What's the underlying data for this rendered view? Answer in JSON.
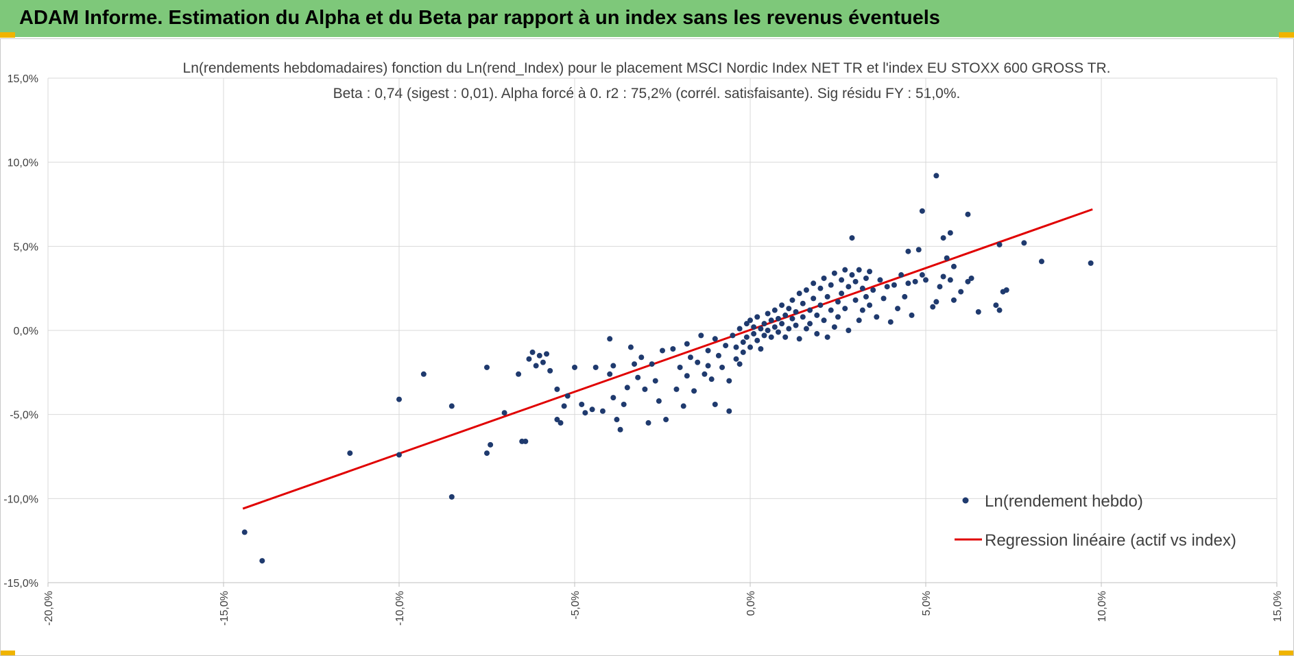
{
  "header": {
    "title": "ADAM Informe. Estimation du Alpha et du Beta par rapport à un index sans les revenus éventuels",
    "bar_color": "#7ec87a",
    "corner_color": "#f0b400"
  },
  "chart_data": {
    "type": "scatter",
    "title": "Ln(rendements hebdomadaires) fonction du Ln(rend_Index) pour le placement MSCI  Nordic Index NET TR et l'index EU STOXX 600 GROSS TR.",
    "subtitle": "Beta : 0,74 (sigest : 0,01).  Alpha forcé à 0. r2 : 75,2% (corrél. satisfaisante). Sig résidu FY : 51,0%.",
    "xlabel": "",
    "ylabel": "",
    "xlim": [
      -0.2,
      0.15
    ],
    "ylim": [
      -0.15,
      0.15
    ],
    "x_ticks": [
      -0.2,
      -0.15,
      -0.1,
      -0.05,
      0.0,
      0.05,
      0.1,
      0.15
    ],
    "x_tick_labels": [
      "-20,0%",
      "-15,0%",
      "-10,0%",
      "-5,0%",
      "0,0%",
      "5,0%",
      "10,0%",
      "15,0%"
    ],
    "y_ticks": [
      -0.15,
      -0.1,
      -0.05,
      0.0,
      0.05,
      0.1,
      0.15
    ],
    "y_tick_labels": [
      "-15,0%",
      "-10,0%",
      "-5,0%",
      "0,0%",
      "5,0%",
      "10,0%",
      "15,0%"
    ],
    "grid": true,
    "legend_position": "bottom-right",
    "series": [
      {
        "name": "Ln(rendement hebdo)",
        "type": "scatter",
        "color": "#1f3a6e",
        "points": [
          [
            -0.144,
            -0.12
          ],
          [
            -0.139,
            -0.137
          ],
          [
            -0.114,
            -0.073
          ],
          [
            -0.1,
            -0.041
          ],
          [
            -0.1,
            -0.074
          ],
          [
            -0.093,
            -0.026
          ],
          [
            -0.085,
            -0.045
          ],
          [
            -0.085,
            -0.099
          ],
          [
            -0.075,
            -0.022
          ],
          [
            -0.074,
            -0.068
          ],
          [
            -0.075,
            -0.073
          ],
          [
            -0.07,
            -0.049
          ],
          [
            -0.066,
            -0.026
          ],
          [
            -0.065,
            -0.066
          ],
          [
            -0.064,
            -0.066
          ],
          [
            -0.063,
            -0.017
          ],
          [
            -0.062,
            -0.013
          ],
          [
            -0.061,
            -0.021
          ],
          [
            -0.06,
            -0.015
          ],
          [
            -0.059,
            -0.019
          ],
          [
            -0.058,
            -0.014
          ],
          [
            -0.057,
            -0.024
          ],
          [
            -0.055,
            -0.035
          ],
          [
            -0.055,
            -0.053
          ],
          [
            -0.054,
            -0.055
          ],
          [
            -0.053,
            -0.045
          ],
          [
            -0.052,
            -0.039
          ],
          [
            -0.05,
            -0.022
          ],
          [
            -0.048,
            -0.044
          ],
          [
            -0.047,
            -0.049
          ],
          [
            -0.045,
            -0.047
          ],
          [
            -0.044,
            -0.022
          ],
          [
            -0.042,
            -0.048
          ],
          [
            -0.04,
            -0.026
          ],
          [
            -0.039,
            -0.021
          ],
          [
            -0.039,
            -0.04
          ],
          [
            -0.038,
            -0.053
          ],
          [
            -0.04,
            -0.005
          ],
          [
            -0.037,
            -0.059
          ],
          [
            -0.036,
            -0.044
          ],
          [
            -0.035,
            -0.034
          ],
          [
            -0.034,
            -0.01
          ],
          [
            -0.033,
            -0.02
          ],
          [
            -0.032,
            -0.028
          ],
          [
            -0.031,
            -0.016
          ],
          [
            -0.03,
            -0.035
          ],
          [
            -0.029,
            -0.055
          ],
          [
            -0.028,
            -0.02
          ],
          [
            -0.027,
            -0.03
          ],
          [
            -0.026,
            -0.042
          ],
          [
            -0.025,
            -0.012
          ],
          [
            -0.024,
            -0.053
          ],
          [
            -0.022,
            -0.011
          ],
          [
            -0.021,
            -0.035
          ],
          [
            -0.02,
            -0.022
          ],
          [
            -0.019,
            -0.045
          ],
          [
            -0.018,
            -0.008
          ],
          [
            -0.018,
            -0.027
          ],
          [
            -0.017,
            -0.016
          ],
          [
            -0.016,
            -0.036
          ],
          [
            -0.015,
            -0.019
          ],
          [
            -0.014,
            -0.003
          ],
          [
            -0.013,
            -0.026
          ],
          [
            -0.012,
            -0.012
          ],
          [
            -0.012,
            -0.021
          ],
          [
            -0.011,
            -0.029
          ],
          [
            -0.01,
            -0.044
          ],
          [
            -0.01,
            -0.005
          ],
          [
            -0.009,
            -0.015
          ],
          [
            -0.008,
            -0.022
          ],
          [
            -0.007,
            -0.009
          ],
          [
            -0.006,
            -0.048
          ],
          [
            -0.006,
            -0.03
          ],
          [
            -0.005,
            -0.003
          ],
          [
            -0.004,
            -0.017
          ],
          [
            -0.004,
            -0.01
          ],
          [
            -0.003,
            0.001
          ],
          [
            -0.003,
            -0.02
          ],
          [
            -0.002,
            -0.007
          ],
          [
            -0.002,
            -0.013
          ],
          [
            -0.001,
            0.004
          ],
          [
            -0.001,
            -0.004
          ],
          [
            0.0,
            -0.01
          ],
          [
            0.0,
            0.006
          ],
          [
            0.001,
            -0.002
          ],
          [
            0.001,
            0.002
          ],
          [
            0.002,
            -0.006
          ],
          [
            0.002,
            0.008
          ],
          [
            0.003,
            0.001
          ],
          [
            0.003,
            -0.011
          ],
          [
            0.004,
            0.004
          ],
          [
            0.004,
            -0.003
          ],
          [
            0.005,
            0.01
          ],
          [
            0.005,
            0.0
          ],
          [
            0.006,
            0.006
          ],
          [
            0.006,
            -0.004
          ],
          [
            0.007,
            0.012
          ],
          [
            0.007,
            0.002
          ],
          [
            0.008,
            0.007
          ],
          [
            0.008,
            -0.001
          ],
          [
            0.009,
            0.015
          ],
          [
            0.009,
            0.004
          ],
          [
            0.01,
            0.009
          ],
          [
            0.01,
            -0.004
          ],
          [
            0.011,
            0.013
          ],
          [
            0.011,
            0.001
          ],
          [
            0.012,
            0.007
          ],
          [
            0.012,
            0.018
          ],
          [
            0.013,
            0.003
          ],
          [
            0.013,
            0.011
          ],
          [
            0.014,
            0.022
          ],
          [
            0.014,
            -0.005
          ],
          [
            0.015,
            0.008
          ],
          [
            0.015,
            0.016
          ],
          [
            0.016,
            0.001
          ],
          [
            0.016,
            0.024
          ],
          [
            0.017,
            0.012
          ],
          [
            0.017,
            0.004
          ],
          [
            0.018,
            0.019
          ],
          [
            0.018,
            0.028
          ],
          [
            0.019,
            0.009
          ],
          [
            0.019,
            -0.002
          ],
          [
            0.02,
            0.015
          ],
          [
            0.02,
            0.025
          ],
          [
            0.021,
            0.031
          ],
          [
            0.021,
            0.006
          ],
          [
            0.022,
            0.02
          ],
          [
            0.022,
            -0.004
          ],
          [
            0.023,
            0.012
          ],
          [
            0.023,
            0.027
          ],
          [
            0.024,
            0.034
          ],
          [
            0.024,
            0.002
          ],
          [
            0.025,
            0.017
          ],
          [
            0.025,
            0.008
          ],
          [
            0.026,
            0.03
          ],
          [
            0.026,
            0.022
          ],
          [
            0.027,
            0.036
          ],
          [
            0.027,
            0.013
          ],
          [
            0.028,
            0.026
          ],
          [
            0.028,
            0.0
          ],
          [
            0.029,
            0.033
          ],
          [
            0.029,
            0.055
          ],
          [
            0.03,
            0.018
          ],
          [
            0.03,
            0.029
          ],
          [
            0.031,
            0.006
          ],
          [
            0.031,
            0.036
          ],
          [
            0.032,
            0.025
          ],
          [
            0.032,
            0.012
          ],
          [
            0.033,
            0.031
          ],
          [
            0.033,
            0.02
          ],
          [
            0.034,
            0.015
          ],
          [
            0.034,
            0.035
          ],
          [
            0.035,
            0.024
          ],
          [
            0.036,
            0.008
          ],
          [
            0.037,
            0.03
          ],
          [
            0.038,
            0.019
          ],
          [
            0.039,
            0.026
          ],
          [
            0.04,
            0.005
          ],
          [
            0.041,
            0.027
          ],
          [
            0.042,
            0.013
          ],
          [
            0.043,
            0.033
          ],
          [
            0.044,
            0.02
          ],
          [
            0.045,
            0.047
          ],
          [
            0.045,
            0.028
          ],
          [
            0.046,
            0.009
          ],
          [
            0.047,
            0.029
          ],
          [
            0.048,
            0.048
          ],
          [
            0.049,
            0.033
          ],
          [
            0.05,
            0.03
          ],
          [
            0.052,
            0.014
          ],
          [
            0.053,
            0.017
          ],
          [
            0.054,
            0.026
          ],
          [
            0.055,
            0.032
          ],
          [
            0.056,
            0.043
          ],
          [
            0.057,
            0.058
          ],
          [
            0.058,
            0.038
          ],
          [
            0.06,
            0.023
          ],
          [
            0.062,
            0.029
          ],
          [
            0.063,
            0.031
          ],
          [
            0.065,
            0.011
          ],
          [
            0.07,
            0.015
          ],
          [
            0.071,
            0.012
          ],
          [
            0.072,
            0.023
          ],
          [
            0.073,
            0.024
          ],
          [
            0.049,
            0.071
          ],
          [
            0.053,
            0.092
          ],
          [
            0.055,
            0.055
          ],
          [
            0.057,
            0.03
          ],
          [
            0.058,
            0.018
          ],
          [
            0.062,
            0.069
          ],
          [
            0.071,
            0.051
          ],
          [
            0.078,
            0.052
          ],
          [
            0.083,
            0.041
          ],
          [
            0.097,
            0.04
          ]
        ]
      },
      {
        "name": "Regression linéaire (actif vs index)",
        "type": "line",
        "color": "#e00000",
        "x": [
          -0.1445,
          0.0975
        ],
        "y": [
          -0.106,
          0.072
        ]
      }
    ]
  }
}
